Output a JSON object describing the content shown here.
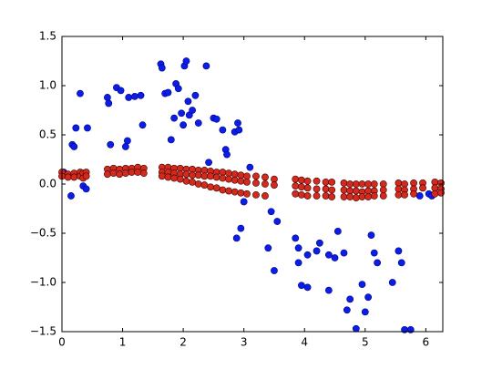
{
  "chart_data": {
    "type": "scatter",
    "xlim": [
      0,
      6.28
    ],
    "ylim": [
      -1.5,
      1.5
    ],
    "xticks": [
      0,
      1,
      2,
      3,
      4,
      5,
      6
    ],
    "yticks": [
      {
        "value": -1.5,
        "label": "−1.5"
      },
      {
        "value": -1.0,
        "label": "−1.0"
      },
      {
        "value": -0.5,
        "label": "−0.5"
      },
      {
        "value": 0,
        "label": "0.0"
      },
      {
        "value": 0.5,
        "label": "0.5"
      },
      {
        "value": 1.0,
        "label": "1.0"
      },
      {
        "value": 1.5,
        "label": "1.5"
      }
    ],
    "series": [
      {
        "color": "#0a1ee6",
        "edge": "#00008b",
        "x": [
          0.03,
          0.15,
          0.17,
          0.2,
          0.23,
          0.3,
          0.35,
          0.4,
          0.42,
          0.75,
          0.77,
          0.8,
          0.9,
          0.97,
          1.05,
          1.08,
          1.1,
          1.2,
          1.3,
          1.33,
          1.63,
          1.65,
          1.7,
          1.75,
          1.8,
          1.85,
          1.88,
          1.92,
          1.97,
          2.0,
          2.02,
          2.05,
          2.08,
          2.1,
          2.15,
          2.2,
          2.25,
          2.38,
          2.42,
          2.5,
          2.55,
          2.65,
          2.7,
          2.72,
          2.85,
          2.9,
          2.92,
          2.88,
          2.95,
          3.0,
          3.1,
          3.4,
          3.45,
          3.5,
          3.55,
          3.85,
          3.9,
          3.9,
          3.95,
          4.05,
          4.05,
          4.2,
          4.25,
          4.4,
          4.5,
          4.4,
          4.55,
          4.65,
          4.7,
          4.75,
          4.85,
          4.95,
          5.0,
          5.05,
          5.1,
          5.15,
          5.2,
          5.45,
          5.55,
          5.6,
          5.65,
          5.75,
          5.9,
          6.05,
          6.1
        ],
        "values": [
          0.12,
          -0.12,
          0.4,
          0.38,
          0.57,
          0.92,
          -0.02,
          -0.05,
          0.57,
          0.88,
          0.82,
          0.4,
          0.98,
          0.95,
          0.38,
          0.44,
          0.88,
          0.89,
          0.9,
          0.6,
          1.22,
          1.18,
          0.92,
          0.93,
          0.45,
          0.67,
          1.02,
          0.97,
          0.72,
          0.6,
          1.2,
          1.25,
          0.84,
          0.7,
          0.75,
          0.9,
          0.62,
          1.2,
          0.22,
          0.67,
          0.66,
          0.55,
          0.35,
          0.3,
          0.53,
          0.62,
          0.55,
          -0.55,
          -0.45,
          -0.18,
          0.17,
          -0.65,
          -0.28,
          -0.88,
          -0.38,
          -0.55,
          -0.65,
          -0.8,
          -1.03,
          -0.72,
          -1.05,
          -0.68,
          -0.6,
          -0.72,
          -0.75,
          -1.08,
          -0.48,
          -0.7,
          -1.28,
          -1.17,
          -1.47,
          -1.02,
          -1.3,
          -1.15,
          -0.52,
          -0.7,
          -0.8,
          -1.0,
          -0.68,
          -0.8,
          -1.48,
          -1.48,
          -0.12,
          -0.1,
          -0.12
        ]
      },
      {
        "color": "#d42a1e",
        "edge": "#3a0000",
        "x": [
          0,
          0,
          0.1,
          0.1,
          0.2,
          0.2,
          0.3,
          0.3,
          0.35,
          0.35,
          0.4,
          0.4,
          0.75,
          0.75,
          0.85,
          0.85,
          0.95,
          0.95,
          1.05,
          1.05,
          1.15,
          1.15,
          1.25,
          1.25,
          1.35,
          1.35,
          1.65,
          1.65,
          1.65,
          1.75,
          1.75,
          1.75,
          1.85,
          1.85,
          1.85,
          1.95,
          1.95,
          1.95,
          2.05,
          2.05,
          2.05,
          2.15,
          2.15,
          2.15,
          2.25,
          2.25,
          2.25,
          2.35,
          2.35,
          2.35,
          2.45,
          2.45,
          2.45,
          2.55,
          2.55,
          2.55,
          2.65,
          2.65,
          2.65,
          2.75,
          2.75,
          2.75,
          2.85,
          2.85,
          2.85,
          2.95,
          2.95,
          2.95,
          3.05,
          3.05,
          3.05,
          3.2,
          3.2,
          3.2,
          3.35,
          3.35,
          3.35,
          3.5,
          3.5,
          3.85,
          3.85,
          3.85,
          3.95,
          3.95,
          3.95,
          4.05,
          4.05,
          4.05,
          4.2,
          4.2,
          4.2,
          4.35,
          4.35,
          4.35,
          4.45,
          4.45,
          4.45,
          4.65,
          4.65,
          4.65,
          4.75,
          4.75,
          4.75,
          4.85,
          4.85,
          4.85,
          4.95,
          4.95,
          4.95,
          5.05,
          5.05,
          5.05,
          5.15,
          5.15,
          5.15,
          5.3,
          5.3,
          5.3,
          5.55,
          5.55,
          5.55,
          5.65,
          5.65,
          5.65,
          5.8,
          5.8,
          5.8,
          5.95,
          5.95,
          6.15,
          6.15,
          6.15,
          6.25,
          6.25,
          6.25
        ],
        "values": [
          0.12,
          0.08,
          0.1,
          0.07,
          0.11,
          0.07,
          0.12,
          0.08,
          0.11,
          0.06,
          0.12,
          0.08,
          0.15,
          0.1,
          0.16,
          0.11,
          0.15,
          0.1,
          0.16,
          0.11,
          0.16,
          0.12,
          0.17,
          0.12,
          0.16,
          0.11,
          0.17,
          0.12,
          0.08,
          0.17,
          0.12,
          0.07,
          0.16,
          0.11,
          0.06,
          0.16,
          0.1,
          0.05,
          0.15,
          0.1,
          0.03,
          0.15,
          0.09,
          0.02,
          0.14,
          0.09,
          0.0,
          0.14,
          0.08,
          -0.01,
          0.13,
          0.08,
          -0.03,
          0.12,
          0.07,
          -0.04,
          0.12,
          0.06,
          -0.06,
          0.11,
          0.05,
          -0.07,
          0.1,
          0.04,
          -0.08,
          0.09,
          0.03,
          -0.09,
          0.08,
          0.02,
          -0.1,
          0.08,
          0.01,
          -0.11,
          0.07,
          0.0,
          -0.12,
          0.05,
          -0.01,
          0.05,
          -0.02,
          -0.1,
          0.04,
          -0.03,
          -0.11,
          0.03,
          -0.04,
          -0.12,
          0.03,
          -0.05,
          -0.12,
          0.02,
          -0.05,
          -0.12,
          0.02,
          -0.06,
          -0.13,
          0.01,
          -0.06,
          -0.13,
          0.0,
          -0.07,
          -0.13,
          0.0,
          -0.07,
          -0.14,
          0.0,
          -0.08,
          -0.13,
          0.0,
          -0.07,
          -0.13,
          0.0,
          -0.07,
          -0.12,
          0.0,
          -0.06,
          -0.12,
          0.01,
          -0.05,
          -0.11,
          0.0,
          -0.06,
          -0.11,
          0.01,
          -0.05,
          -0.1,
          0.01,
          -0.04,
          0.02,
          -0.04,
          -0.1,
          0.01,
          -0.05,
          -0.09
        ]
      }
    ]
  }
}
